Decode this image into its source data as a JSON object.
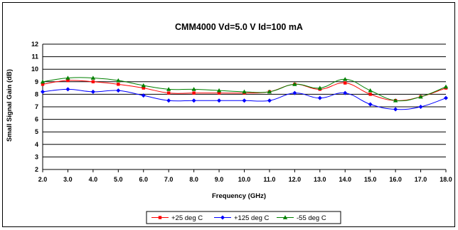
{
  "chart_data": {
    "type": "line",
    "title": "CMM4000 Vd=5.0 V Id=100 mA",
    "xlabel": "Frequency (GHz)",
    "ylabel": "Small Signal Gain (dB)",
    "xlim": [
      2.0,
      18.0
    ],
    "ylim": [
      2,
      12
    ],
    "grid": "horizontal",
    "legend_position": "bottom-center",
    "x": [
      2,
      3,
      4,
      5,
      6,
      7,
      8,
      9,
      10,
      11,
      12,
      13,
      14,
      15,
      16,
      17,
      18
    ],
    "x_tick_labels": [
      "2.0",
      "3.0",
      "4.0",
      "5.0",
      "6.0",
      "7.0",
      "8.0",
      "9.0",
      "10.0",
      "11.0",
      "12.0",
      "13.0",
      "14.0",
      "15.0",
      "16.0",
      "17.0",
      "18.0"
    ],
    "y_tick_labels": [
      "2",
      "3",
      "4",
      "5",
      "6",
      "7",
      "8",
      "9",
      "10",
      "11",
      "12"
    ],
    "series": [
      {
        "name": "+25 deg C",
        "color": "#ff0000",
        "marker": "square",
        "values": [
          8.8,
          9.1,
          9.0,
          8.8,
          8.5,
          8.1,
          8.1,
          8.1,
          8.1,
          8.2,
          8.8,
          8.4,
          8.9,
          8.0,
          7.5,
          7.8,
          8.5
        ]
      },
      {
        "name": "+125 deg C",
        "color": "#0000ff",
        "marker": "diamond",
        "values": [
          8.2,
          8.4,
          8.2,
          8.3,
          7.9,
          7.5,
          7.5,
          7.5,
          7.5,
          7.5,
          8.1,
          7.7,
          8.1,
          7.2,
          6.8,
          7.0,
          7.7
        ]
      },
      {
        "name": "-55 deg C",
        "color": "#008000",
        "marker": "triangle",
        "values": [
          9.0,
          9.3,
          9.3,
          9.1,
          8.7,
          8.4,
          8.4,
          8.3,
          8.2,
          8.2,
          8.8,
          8.5,
          9.2,
          8.3,
          7.5,
          7.8,
          8.6
        ]
      }
    ]
  }
}
